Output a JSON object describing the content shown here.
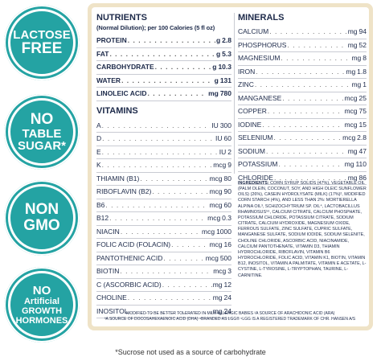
{
  "badges": [
    {
      "line1": "LACTOSE",
      "line2": "FREE"
    },
    {
      "line1": "NO",
      "line2": "TABLE",
      "line3": "SUGAR*"
    },
    {
      "line1": "NON",
      "line2": "GMO"
    },
    {
      "line1": "NO",
      "line2": "Artificial",
      "line3": "GROWTH",
      "line4": "HORMONES"
    }
  ],
  "nutrients": {
    "title": "NUTRIENTS",
    "subtitle": "(Normal Dilution); per 100 Calories (5 fl oz)",
    "rows": [
      {
        "name": "PROTEIN",
        "unit": "g",
        "value": "2.8"
      },
      {
        "name": "FAT",
        "unit": "g",
        "value": "5.3"
      },
      {
        "name": "CARBOHYDRATE",
        "unit": "g",
        "value": "10.3"
      },
      {
        "name": "WATER",
        "unit": "g",
        "value": "131"
      },
      {
        "name": "LINOLEIC ACID",
        "unit": "mg",
        "value": "780"
      }
    ]
  },
  "vitamins": {
    "title": "VITAMINS",
    "rows": [
      {
        "name": "A",
        "unit": "IU",
        "value": "300"
      },
      {
        "name": "D",
        "unit": "IU",
        "value": "60"
      },
      {
        "name": "E",
        "unit": "IU",
        "value": "2"
      },
      {
        "name": "K",
        "unit": "mcg",
        "value": "9"
      },
      {
        "name": "THIAMIN (B1)",
        "unit": "mcg",
        "value": "80"
      },
      {
        "name": "RIBOFLAVIN (B2)",
        "unit": "mcg",
        "value": "90"
      },
      {
        "name": "B6",
        "unit": "mcg",
        "value": "60"
      },
      {
        "name": "B12",
        "unit": "mcg",
        "value": "0.3"
      },
      {
        "name": "NIACIN",
        "unit": "mcg",
        "value": "1000"
      },
      {
        "name": "FOLIC ACID (FOLACIN)",
        "unit": "mcg",
        "value": "16"
      },
      {
        "name": "PANTOTHENIC ACID",
        "unit": "mcg",
        "value": "500"
      },
      {
        "name": "BIOTIN",
        "unit": "mcg",
        "value": "3"
      },
      {
        "name": "C (ASCORBIC ACID)",
        "unit": "mg",
        "value": "12"
      },
      {
        "name": "CHOLINE",
        "unit": "mg",
        "value": "24"
      },
      {
        "name": "INOSITOL",
        "unit": "mg",
        "value": "24"
      }
    ]
  },
  "minerals": {
    "title": "MINERALS",
    "rows": [
      {
        "name": "CALCIUM",
        "unit": "mg",
        "value": "94"
      },
      {
        "name": "PHOSPHORUS",
        "unit": "mg",
        "value": "52"
      },
      {
        "name": "MAGNESIUM",
        "unit": "mg",
        "value": "8"
      },
      {
        "name": "IRON",
        "unit": "mg",
        "value": "1.8"
      },
      {
        "name": "ZINC",
        "unit": "mg",
        "value": "1"
      },
      {
        "name": "MANGANESE",
        "unit": "mcg",
        "value": "25"
      },
      {
        "name": "COPPER",
        "unit": "mcg",
        "value": "75"
      },
      {
        "name": "IODINE",
        "unit": "mcg",
        "value": "15"
      },
      {
        "name": "SELENIUM",
        "unit": "mcg",
        "value": "2.8"
      },
      {
        "name": "SODIUM",
        "unit": "mg",
        "value": "47"
      },
      {
        "name": "POTASSIUM",
        "unit": "mg",
        "value": "110"
      },
      {
        "name": "CHLORIDE",
        "unit": "mg",
        "value": "86"
      }
    ]
  },
  "ingredients": {
    "lead": "INGREDIENTS:",
    "text": "CORN SYRUP SOLIDS (47%), VEGETABLE OIL (PALM OLEIN, COCONUT, SOY, AND HIGH OLEIC SUNFLOWER OILS) (26%), CASEIN HYDROLYSATE (MILK) (17%)², MODIFIED CORN STARCH (4%), AND LESS THAN 2%: MORTIERELLA ALPINA OIL³, SCHIZOCHYTRIUM SP. OIL⁴, LACTOBACILLUS RHAMNOSUS⁵⁶, CALCIUM CITRATE, CALCIUM PHOSPHATE, POTASSIUM CHLORIDE, POTASSIUM CITRATE, SODIUM CITRATE, CALCIUM HYDROXIDE, MAGNESIUM OXIDE, FERROUS SULFATE, ZINC SULFATE, CUPRIC SULFATE, MANGANESE SULFATE, SODIUM IODIDE, SODIUM SELENITE, CHOLINE CHLORIDE, ASCORBIC ACID, NIACINAMIDE, CALCIUM PANTOTHENATE, VITAMIN D3, THIAMIN HYDROCHLORIDE, RIBOFLAVIN, VITAMIN B6 HYDROCHLORIDE, FOLIC ACID, VITAMIN K1, BIOTIN, VITAMIN B12, INOSITOL, VITAMIN A PALMITATE, VITAMIN E ACETATE, L-CYSTINE, L-TYROSINE, L-TRYPTOPHAN, TAURINE, L-CARNITINE."
  },
  "footnotes": [
    "¹MODIFIED TO BE BETTER TOLERATED IN MILK-ALLERGIC BABIES ²A SOURCE OF ARACHIDONIC ACID (ARA)",
    "³A SOURCE OF DOCOSAHEXAENOIC ACID (DHA) ⁴BRANDED AS LGG® ⁵LGG IS A REGISTERED TRADEMARK OF CHR. HANSEN A/S"
  ],
  "bottom_note": "*Sucrose not used as a source of carbohydrate",
  "colors": {
    "badge": "#24a3a3",
    "frame": "#efe3c7",
    "text": "#1d2a4a"
  }
}
